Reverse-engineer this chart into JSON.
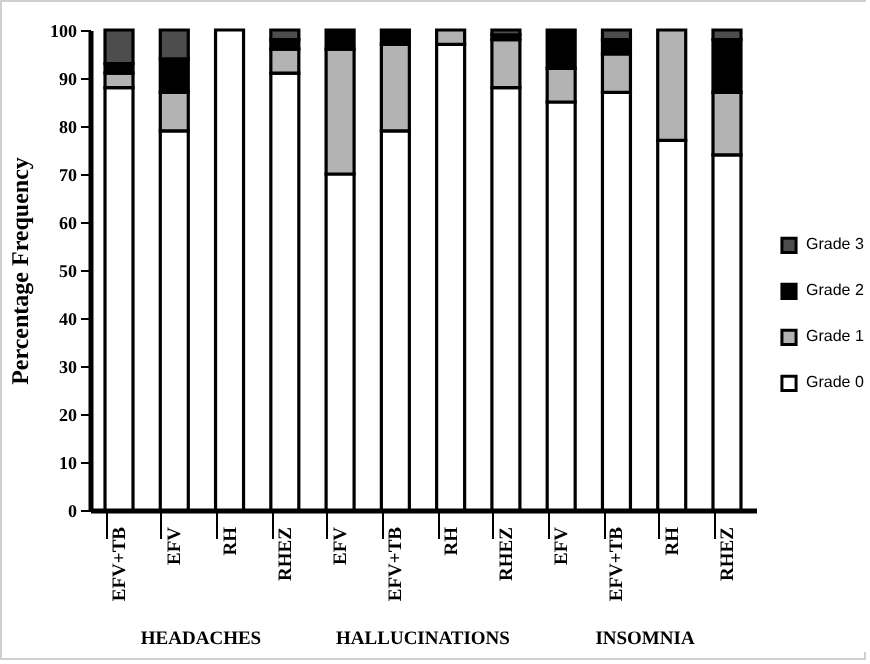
{
  "chart_data": {
    "type": "bar",
    "stacked": true,
    "ylabel": "Percentage Frequency",
    "categories": [
      "EFV+TB",
      "EFV",
      "RH",
      "RHEZ",
      "EFV",
      "EFV+TB",
      "RH",
      "RHEZ",
      "EFV",
      "EFV+TB",
      "RH",
      "RHEZ"
    ],
    "annotations": [
      "HEADACHES",
      "HALLUCINATIONS",
      "INSOMNIA"
    ],
    "series": [
      {
        "name": "Grade 0",
        "color": "#ffffff",
        "values": [
          88,
          79,
          100,
          91,
          70,
          79,
          97,
          88,
          85,
          87,
          77,
          74
        ]
      },
      {
        "name": "Grade 1",
        "color": "#b3b3b3",
        "values": [
          3,
          8,
          0,
          5,
          26,
          18,
          3,
          10,
          7,
          8,
          23,
          13
        ]
      },
      {
        "name": "Grade 2",
        "color": "#000000",
        "values": [
          2,
          7,
          0,
          2,
          4,
          3,
          0,
          1,
          8,
          3,
          0,
          11
        ]
      },
      {
        "name": "Grade 3",
        "color": "#4d4d4d",
        "values": [
          7,
          6,
          0,
          2,
          0,
          0,
          0,
          1,
          0,
          2,
          0,
          2
        ]
      }
    ],
    "ylim": [
      0,
      100
    ],
    "yticks": [
      0,
      10,
      20,
      30,
      40,
      50,
      60,
      70,
      80,
      90,
      100
    ],
    "legend": "right"
  }
}
